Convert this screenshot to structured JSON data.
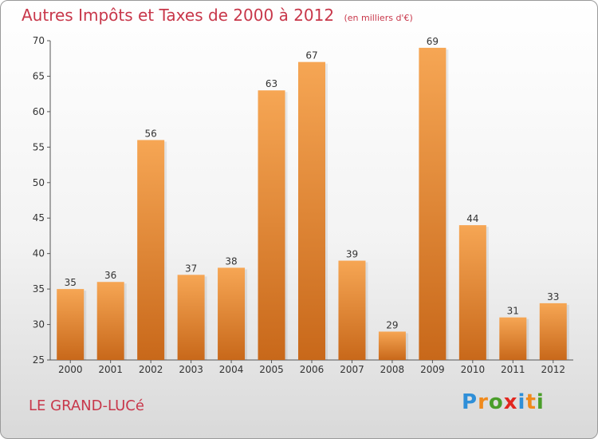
{
  "header": {
    "title": "Autres Impôts et Taxes de 2000 à 2012",
    "subtitle": "(en milliers d'€)"
  },
  "footer": {
    "place": "LE GRAND-LUCé",
    "logo": "Proxiti",
    "logo_colors": [
      "#2f8fd8",
      "#f08a1c",
      "#4a9e2a",
      "#e2271f",
      "#2f8fd8",
      "#f08a1c",
      "#4a9e2a"
    ]
  },
  "colors": {
    "bar_top": "#f6a654",
    "bar_bottom": "#c8681a",
    "text": "#333333",
    "accent": "#c8374a"
  },
  "chart_data": {
    "type": "bar",
    "categories": [
      "2000",
      "2001",
      "2002",
      "2003",
      "2004",
      "2005",
      "2006",
      "2007",
      "2008",
      "2009",
      "2010",
      "2011",
      "2012"
    ],
    "values": [
      35,
      36,
      56,
      37,
      38,
      63,
      67,
      39,
      29,
      69,
      44,
      31,
      33
    ],
    "ylim": [
      25,
      70
    ],
    "yticks": [
      25,
      30,
      35,
      40,
      45,
      50,
      55,
      60,
      65,
      70
    ],
    "grid": false,
    "data_labels": true
  }
}
